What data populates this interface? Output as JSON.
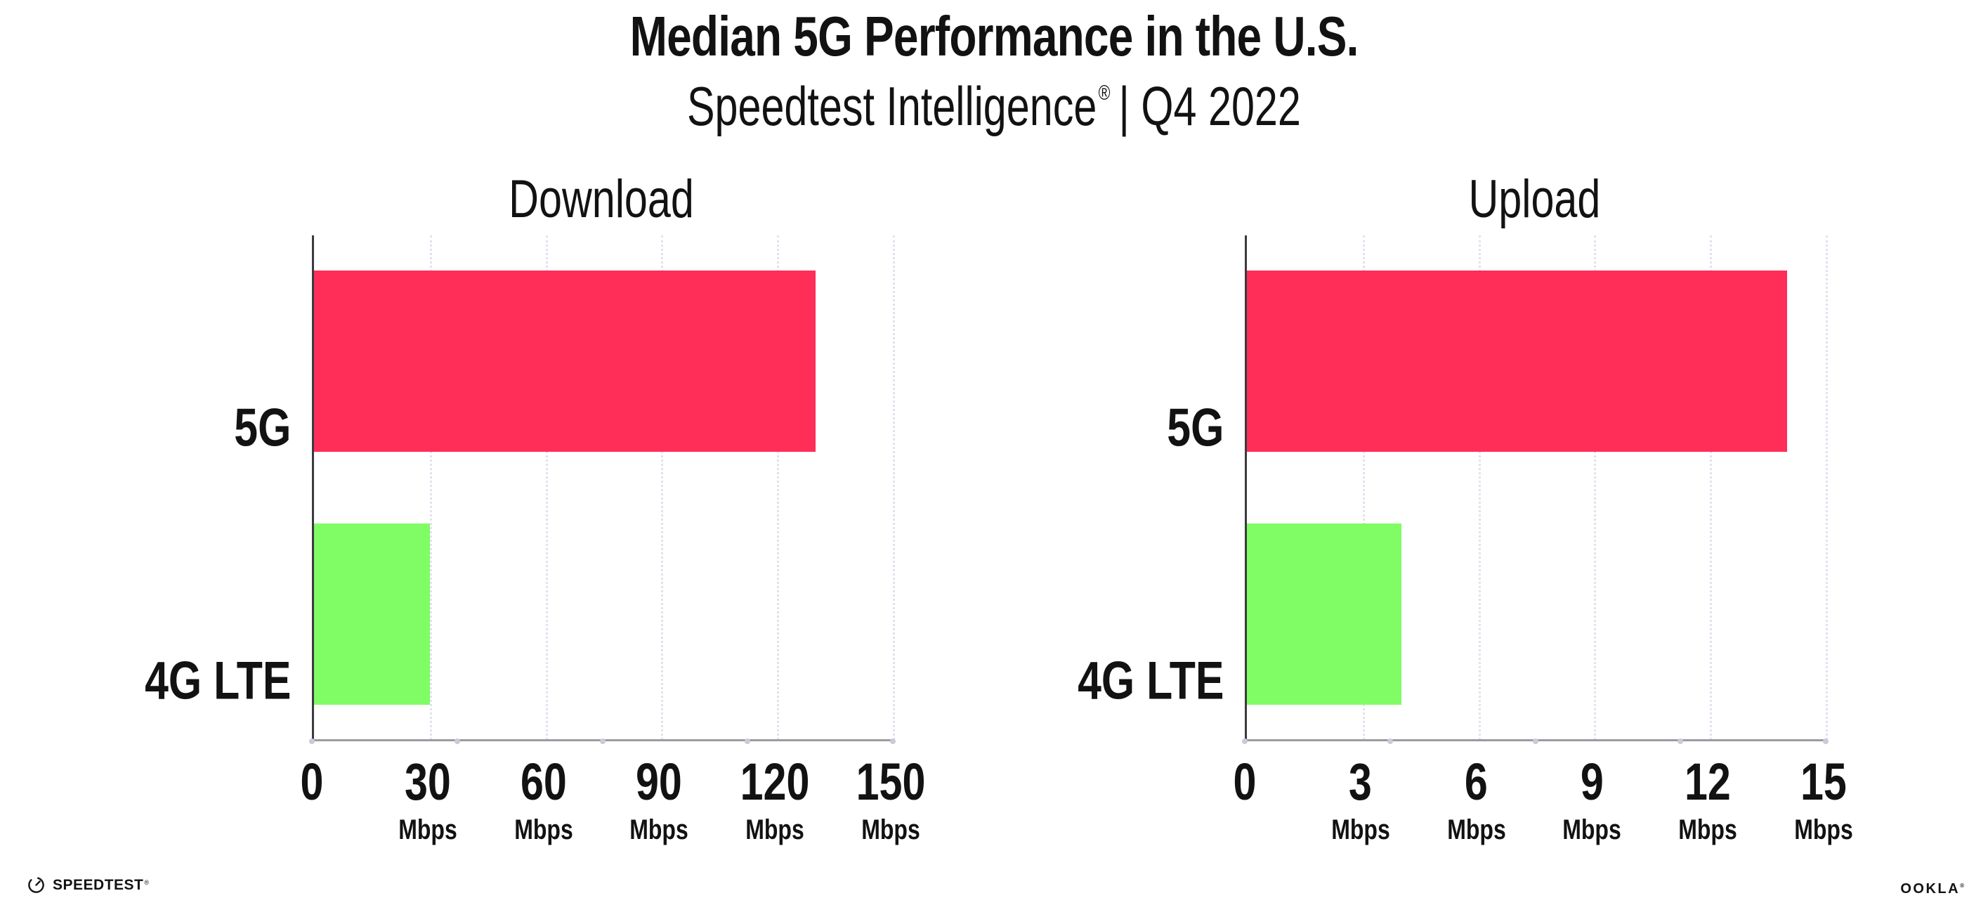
{
  "header": {
    "title": "Median 5G Performance in the U.S.",
    "subtitle_brand": "Speedtest Intelligence",
    "subtitle_reg": "®",
    "subtitle_rest": "| Q4 2022"
  },
  "chart_data": [
    {
      "type": "bar",
      "orientation": "horizontal",
      "title": "Download",
      "categories": [
        "5G",
        "4G LTE"
      ],
      "values": [
        130,
        30
      ],
      "unit": "Mbps",
      "xlim": [
        0,
        150
      ],
      "xticks": [
        0,
        30,
        60,
        90,
        120,
        150
      ],
      "bar_colors": [
        "#ff2e59",
        "#80fc64"
      ],
      "grid": "dotted-vertical",
      "legend": "none"
    },
    {
      "type": "bar",
      "orientation": "horizontal",
      "title": "Upload",
      "categories": [
        "5G",
        "4G LTE"
      ],
      "values": [
        14,
        4
      ],
      "unit": "Mbps",
      "xlim": [
        0,
        15
      ],
      "xticks": [
        0,
        3,
        6,
        9,
        12,
        15
      ],
      "bar_colors": [
        "#ff2e59",
        "#80fc64"
      ],
      "grid": "dotted-vertical",
      "legend": "none"
    }
  ],
  "footer": {
    "speedtest_icon": "speedtest-gauge-icon",
    "speedtest_label": "SPEEDTEST",
    "speedtest_reg": "®",
    "ookla_label": "OOKLA",
    "ookla_reg": "®"
  },
  "colors": {
    "bar_5g": "#ff2e59",
    "bar_4g_lte": "#80fc64",
    "gridline": "#e1e2ee",
    "axis_left": "#3a3a40",
    "axis_bottom": "#9b9ba1",
    "axis_minor_dot": "#c9cada",
    "text": "#121212",
    "background": "#ffffff"
  }
}
